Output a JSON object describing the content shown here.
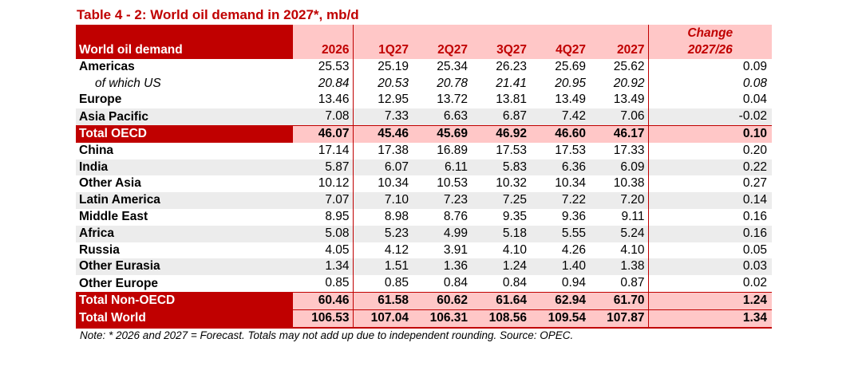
{
  "title": "Table 4 - 2: World oil demand in 2027*, mb/d",
  "header": {
    "label": "World oil demand",
    "columns": [
      "2026",
      "1Q27",
      "2Q27",
      "3Q27",
      "4Q27",
      "2027"
    ],
    "change_line1": "Change",
    "change_line2": "2027/26"
  },
  "rows": [
    {
      "label": "Americas",
      "values": [
        "25.53",
        "25.19",
        "25.34",
        "26.23",
        "25.69",
        "25.62"
      ],
      "change": "0.09"
    },
    {
      "label": "of which US",
      "values": [
        "20.84",
        "20.53",
        "20.78",
        "21.41",
        "20.95",
        "20.92"
      ],
      "change": "0.08"
    },
    {
      "label": "Europe",
      "values": [
        "13.46",
        "12.95",
        "13.72",
        "13.81",
        "13.49",
        "13.49"
      ],
      "change": "0.04"
    },
    {
      "label": "Asia Pacific",
      "values": [
        "7.08",
        "7.33",
        "6.63",
        "6.87",
        "7.42",
        "7.06"
      ],
      "change": "-0.02"
    },
    {
      "label": "Total OECD",
      "values": [
        "46.07",
        "45.46",
        "45.69",
        "46.92",
        "46.60",
        "46.17"
      ],
      "change": "0.10"
    },
    {
      "label": "China",
      "values": [
        "17.14",
        "17.38",
        "16.89",
        "17.53",
        "17.53",
        "17.33"
      ],
      "change": "0.20"
    },
    {
      "label": "India",
      "values": [
        "5.87",
        "6.07",
        "6.11",
        "5.83",
        "6.36",
        "6.09"
      ],
      "change": "0.22"
    },
    {
      "label": "Other Asia",
      "values": [
        "10.12",
        "10.34",
        "10.53",
        "10.32",
        "10.34",
        "10.38"
      ],
      "change": "0.27"
    },
    {
      "label": "Latin America",
      "values": [
        "7.07",
        "7.10",
        "7.23",
        "7.25",
        "7.22",
        "7.20"
      ],
      "change": "0.14"
    },
    {
      "label": "Middle East",
      "values": [
        "8.95",
        "8.98",
        "8.76",
        "9.35",
        "9.36",
        "9.11"
      ],
      "change": "0.16"
    },
    {
      "label": "Africa",
      "values": [
        "5.08",
        "5.23",
        "4.99",
        "5.18",
        "5.55",
        "5.24"
      ],
      "change": "0.16"
    },
    {
      "label": "Russia",
      "values": [
        "4.05",
        "4.12",
        "3.91",
        "4.10",
        "4.26",
        "4.10"
      ],
      "change": "0.05"
    },
    {
      "label": "Other Eurasia",
      "values": [
        "1.34",
        "1.51",
        "1.36",
        "1.24",
        "1.40",
        "1.38"
      ],
      "change": "0.03"
    },
    {
      "label": "Other Europe",
      "values": [
        "0.85",
        "0.85",
        "0.84",
        "0.84",
        "0.94",
        "0.87"
      ],
      "change": "0.02"
    },
    {
      "label": "Total Non-OECD",
      "values": [
        "60.46",
        "61.58",
        "60.62",
        "61.64",
        "62.94",
        "61.70"
      ],
      "change": "1.24"
    },
    {
      "label": "Total World",
      "values": [
        "106.53",
        "107.04",
        "106.31",
        "108.56",
        "109.54",
        "107.87"
      ],
      "change": "1.34"
    }
  ],
  "note": "Note: * 2026 and 2027 = Forecast. Totals may not add up due to independent rounding. Source: OPEC.",
  "colors": {
    "accent": "#c00000",
    "highlight": "#ffc7c7",
    "stripe": "#ececec"
  }
}
